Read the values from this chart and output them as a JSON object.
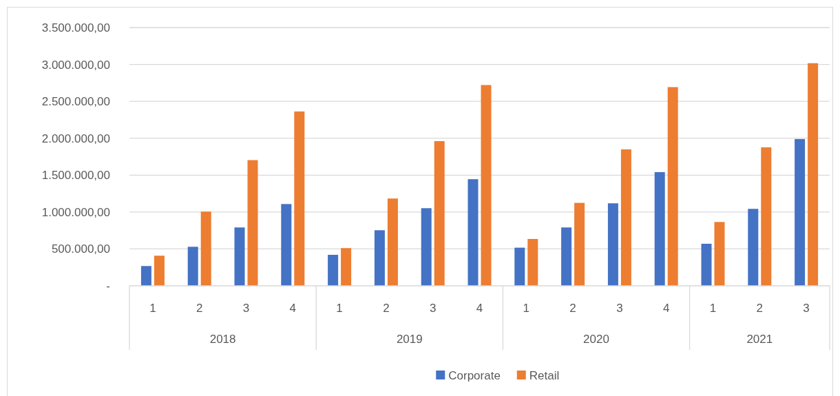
{
  "chart_data": {
    "type": "bar",
    "categories": [
      "1",
      "2",
      "3",
      "4",
      "1",
      "2",
      "3",
      "4",
      "1",
      "2",
      "3",
      "4",
      "1",
      "2",
      "3"
    ],
    "annotations": [
      "2018",
      "2019",
      "2020",
      "2021"
    ],
    "series": [
      {
        "name": "Corporate",
        "color": "#4472c4",
        "values": [
          268000,
          529000,
          791000,
          1108000,
          420000,
          753000,
          1052000,
          1445000,
          517000,
          791000,
          1118000,
          1541000,
          570000,
          1043000,
          1989000
        ]
      },
      {
        "name": "Retail",
        "color": "#ed7d31",
        "values": [
          408000,
          1006000,
          1703000,
          2363000,
          511000,
          1183000,
          1961000,
          2721000,
          635000,
          1124000,
          1849000,
          2693000,
          865000,
          1877000,
          3017000
        ]
      }
    ],
    "ylim": [
      0,
      3500000
    ],
    "yticks": [
      {
        "value": 0,
        "label": "-"
      },
      {
        "value": 500000,
        "label": "500.000,00"
      },
      {
        "value": 1000000,
        "label": "1.000.000,00"
      },
      {
        "value": 1500000,
        "label": "1.500.000,00"
      },
      {
        "value": 2000000,
        "label": "2.000.000,00"
      },
      {
        "value": 2500000,
        "label": "2.500.000,00"
      },
      {
        "value": 3000000,
        "label": "3.000.000,00"
      },
      {
        "value": 3500000,
        "label": "3.500.000,00"
      }
    ],
    "grid": "y",
    "legend": "bottom"
  }
}
